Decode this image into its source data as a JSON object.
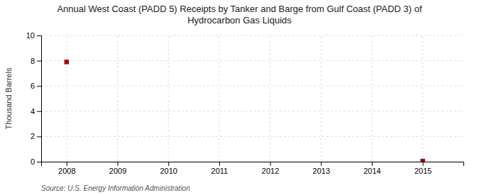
{
  "chart_data": {
    "type": "scatter",
    "title": "Annual West Coast (PADD 5) Receipts by Tanker and Barge from Gulf Coast (PADD 3) of\nHydrocarbon Gas Liquids",
    "ylabel": "Thousand Barrels",
    "source": "Source: U.S. Energy Information Administration",
    "x": [
      2008,
      2015
    ],
    "values": [
      7.9,
      0.05
    ],
    "color": "#aa0000",
    "marker": "square",
    "xlim": [
      2007.5,
      2015.8
    ],
    "xticks": [
      2008,
      2009,
      2010,
      2011,
      2012,
      2013,
      2014,
      2015
    ],
    "ylim": [
      0,
      10
    ],
    "yticks": [
      0,
      2,
      4,
      6,
      8,
      10
    ],
    "grid": true
  }
}
